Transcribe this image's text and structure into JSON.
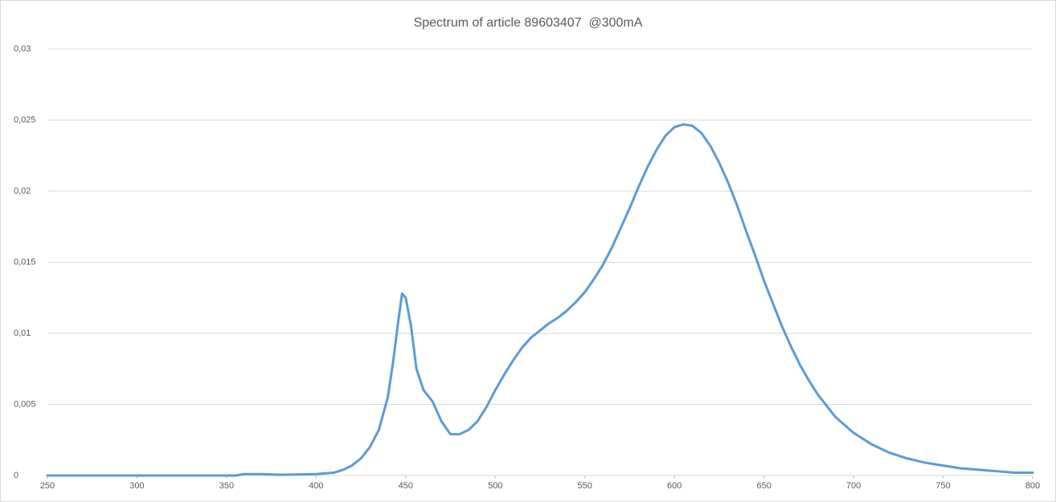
{
  "chart_data": {
    "type": "line",
    "title": "Spectrum of article 89603407  @300mA",
    "x": [
      250,
      300,
      355,
      360,
      370,
      380,
      400,
      410,
      415,
      420,
      425,
      430,
      435,
      440,
      443,
      446,
      448,
      450,
      453,
      456,
      460,
      465,
      470,
      475,
      480,
      485,
      490,
      495,
      500,
      505,
      510,
      515,
      520,
      525,
      530,
      535,
      540,
      545,
      550,
      555,
      560,
      565,
      570,
      575,
      580,
      585,
      590,
      595,
      600,
      605,
      610,
      615,
      620,
      625,
      630,
      635,
      640,
      645,
      650,
      655,
      660,
      665,
      670,
      675,
      680,
      690,
      700,
      710,
      720,
      730,
      740,
      750,
      760,
      770,
      780,
      790,
      800
    ],
    "values": [
      0,
      0,
      0,
      0.0001,
      0.0001,
      5e-05,
      0.0001,
      0.0002,
      0.0004,
      0.0007,
      0.0012,
      0.002,
      0.0032,
      0.0055,
      0.008,
      0.011,
      0.0128,
      0.0125,
      0.0105,
      0.0075,
      0.006,
      0.0052,
      0.0038,
      0.0029,
      0.0029,
      0.0032,
      0.0038,
      0.0048,
      0.006,
      0.0071,
      0.0081,
      0.009,
      0.0097,
      0.0102,
      0.0107,
      0.0111,
      0.0116,
      0.0122,
      0.0129,
      0.0138,
      0.0148,
      0.016,
      0.0174,
      0.0188,
      0.0203,
      0.0217,
      0.0229,
      0.0239,
      0.0245,
      0.0247,
      0.0246,
      0.0241,
      0.0232,
      0.022,
      0.0206,
      0.019,
      0.0172,
      0.0155,
      0.0137,
      0.0121,
      0.0105,
      0.0091,
      0.0078,
      0.0067,
      0.0057,
      0.0041,
      0.003,
      0.0022,
      0.0016,
      0.0012,
      0.0009,
      0.0007,
      0.0005,
      0.0004,
      0.0003,
      0.0002,
      0.0002
    ],
    "color": "#5b9bd5",
    "xlim": [
      250,
      800
    ],
    "xticks": [
      250,
      300,
      350,
      400,
      450,
      500,
      550,
      600,
      650,
      700,
      750,
      800
    ],
    "ylim": [
      0,
      0.03
    ],
    "yticks": [
      0,
      {
        "value": 0.005,
        "label": "0,005"
      },
      {
        "value": 0.01,
        "label": "0,01"
      },
      {
        "value": 0.015,
        "label": "0,015"
      },
      {
        "value": 0.02,
        "label": "0,02"
      },
      {
        "value": 0.025,
        "label": "0,025"
      },
      {
        "value": 0.03,
        "label": "0,03"
      }
    ],
    "grid": true
  }
}
